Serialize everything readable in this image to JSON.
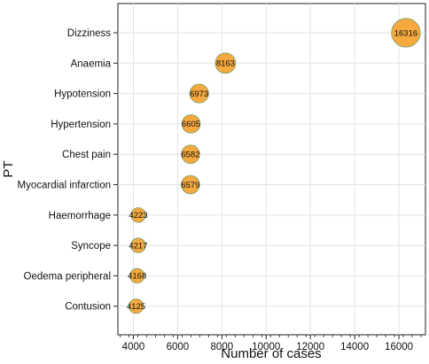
{
  "chart_data": {
    "type": "scatter",
    "xlabel": "Number of cases",
    "ylabel": "PT",
    "categories": [
      "Dizziness",
      "Anaemia",
      "Hypotension",
      "Hypertension",
      "Chest pain",
      "Myocardial infarction",
      "Haemorrhage",
      "Syncope",
      "Oedema peripheral",
      "Contusion"
    ],
    "values": [
      16316,
      8163,
      6973,
      6605,
      6582,
      6579,
      4223,
      4217,
      4168,
      4125
    ],
    "data_labels": [
      "16316",
      "8163",
      "6973",
      "6605",
      "6582",
      "6579",
      "4223",
      "4217",
      "4168",
      "4125"
    ],
    "xticks": [
      4000,
      6000,
      8000,
      10000,
      12000,
      14000,
      16000
    ],
    "xtick_labels": [
      "4000",
      "6000",
      "8000",
      "10000",
      "12000",
      "14000",
      "16000"
    ],
    "xlim": [
      3300,
      17200
    ],
    "grid": true,
    "marker_color": "#f5a93f",
    "marker_edge_color": "#8ea56b"
  }
}
